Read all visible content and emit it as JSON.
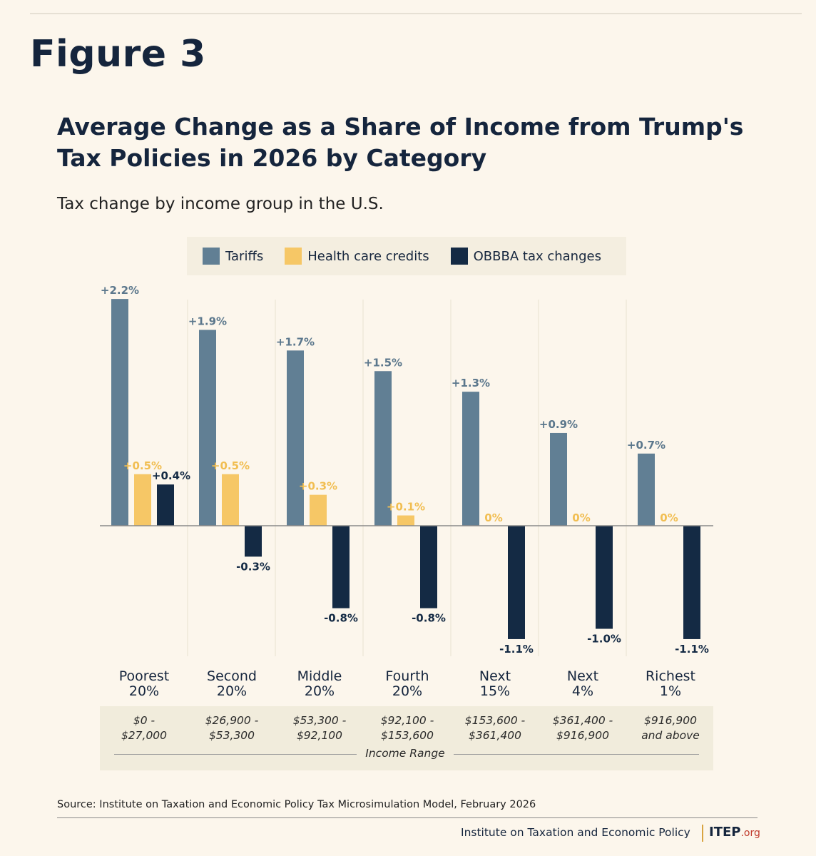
{
  "figure_label": "Figure 3",
  "chart_data": {
    "type": "bar",
    "title": "Average Change as a Share of Income from Trump's Tax Policies in 2026 by Category",
    "subtitle": "Tax change by income group in the U.S.",
    "categories": [
      "Poorest 20%",
      "Second 20%",
      "Middle 20%",
      "Fourth 20%",
      "Next 15%",
      "Next 4%",
      "Richest 1%"
    ],
    "category_lines": [
      [
        "Poorest",
        "20%"
      ],
      [
        "Second",
        "20%"
      ],
      [
        "Middle",
        "20%"
      ],
      [
        "Fourth",
        "20%"
      ],
      [
        "Next",
        "15%"
      ],
      [
        "Next",
        "4%"
      ],
      [
        "Richest",
        "1%"
      ]
    ],
    "income_ranges": [
      [
        "$0 -",
        "$27,000"
      ],
      [
        "$26,900 -",
        "$53,300"
      ],
      [
        "$53,300 -",
        "$92,100"
      ],
      [
        "$92,100 -",
        "$153,600"
      ],
      [
        "$153,600 -",
        "$361,400"
      ],
      [
        "$361,400 -",
        "$916,900"
      ],
      [
        "$916,900",
        "and above"
      ]
    ],
    "income_range_title": "Income Range",
    "series": [
      {
        "name": "Tariffs",
        "color": "#617f94",
        "label_color": "#5b778c",
        "values": [
          2.2,
          1.9,
          1.7,
          1.5,
          1.3,
          0.9,
          0.7
        ],
        "labels": [
          "+2.2%",
          "+1.9%",
          "+1.7%",
          "+1.5%",
          "+1.3%",
          "+0.9%",
          "+0.7%"
        ]
      },
      {
        "name": "Health care credits",
        "color": "#f6c766",
        "label_color": "#f1be52",
        "values": [
          0.5,
          0.5,
          0.3,
          0.1,
          0,
          0,
          0
        ],
        "labels": [
          "+0.5%",
          "+0.5%",
          "+0.3%",
          "+0.1%",
          "0%",
          "0%",
          "0%"
        ]
      },
      {
        "name": "OBBBA tax changes",
        "color": "#142a44",
        "label_color": "#142a44",
        "values": [
          0.4,
          -0.3,
          -0.8,
          -0.8,
          -1.1,
          -1.0,
          -1.1
        ],
        "labels": [
          "+0.4%",
          "-0.3%",
          "-0.8%",
          "-0.8%",
          "-1.1%",
          "-1.0%",
          "-1.1%"
        ]
      }
    ],
    "ylim": [
      -1.4,
      2.4
    ],
    "grid": false,
    "legend_position": "top"
  },
  "source": "Source: Institute on Taxation and Economic Policy Tax Microsimulation Model, February 2026",
  "org_name": "Institute on Taxation and Economic Policy",
  "brand": {
    "main": "ITEP",
    "suffix": ".org"
  }
}
